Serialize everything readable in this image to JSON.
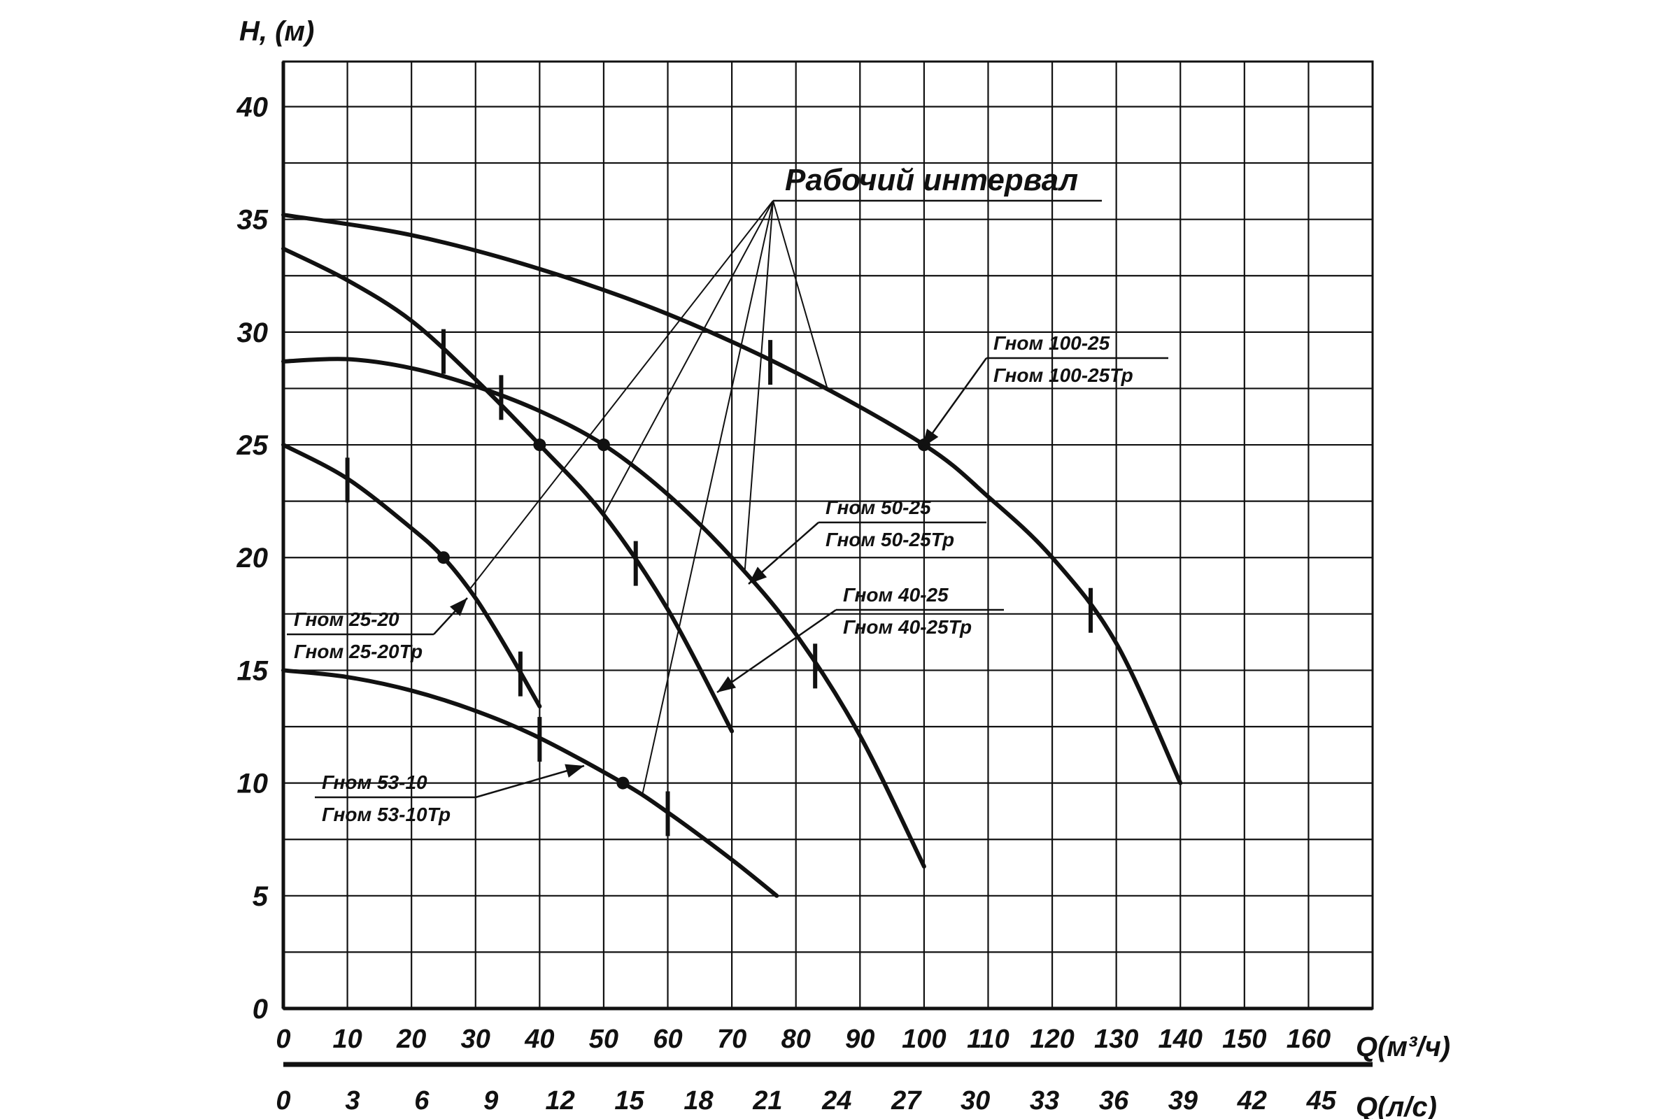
{
  "chart_data": {
    "type": "line",
    "ylabel": "H, (м)",
    "xlabel": "Q(м³/ч)",
    "xlabel2": "Q(л/с)",
    "ylim": [
      0,
      42
    ],
    "xlim": [
      0,
      170
    ],
    "yticks": [
      "0",
      "5",
      "10",
      "15",
      "20",
      "25",
      "30",
      "35",
      "40"
    ],
    "xticks": [
      "0",
      "10",
      "20",
      "30",
      "40",
      "50",
      "60",
      "70",
      "80",
      "90",
      "100",
      "110",
      "120",
      "130",
      "140",
      "150",
      "160"
    ],
    "xticks2": [
      "0",
      "3",
      "6",
      "9",
      "12",
      "15",
      "18",
      "21",
      "24",
      "27",
      "30",
      "33",
      "36",
      "39",
      "42",
      "45"
    ],
    "grid": true,
    "annotation": "Рабочий интервал",
    "series": [
      {
        "name": "Гном 100-25 / Гном 100-25Тр",
        "label_top": "Гном 100-25",
        "label_bottom": "Гном 100-25Тр",
        "x": [
          0,
          20,
          40,
          60,
          80,
          100,
          110,
          120,
          130,
          140
        ],
        "y": [
          35.2,
          34.3,
          32.8,
          30.8,
          28.2,
          25,
          22.7,
          20,
          16.2,
          10
        ],
        "rated_point": [
          100,
          25
        ],
        "interval": [
          76,
          126
        ]
      },
      {
        "name": "Гном 50-25 / Гном 50-25Тр",
        "label_top": "Гном 50-25",
        "label_bottom": "Гном 50-25Тр",
        "x": [
          0,
          10,
          20,
          30,
          40,
          50,
          60,
          70,
          80,
          90,
          100
        ],
        "y": [
          28.7,
          28.8,
          28.4,
          27.6,
          26.5,
          25,
          22.8,
          20,
          16.6,
          12.1,
          6.3
        ],
        "rated_point": [
          50,
          25
        ],
        "interval": [
          34,
          83
        ]
      },
      {
        "name": "Гном 40-25 / Гном 40-25Тр",
        "label_top": "Гном 40-25",
        "label_bottom": "Гном 40-25Тр",
        "x": [
          0,
          10,
          20,
          30,
          40,
          50,
          60,
          70
        ],
        "y": [
          33.7,
          32.3,
          30.5,
          27.9,
          25,
          21.9,
          17.7,
          12.3
        ],
        "rated_point": [
          40,
          25
        ],
        "interval": [
          25,
          55
        ]
      },
      {
        "name": "Гном 25-20 / Гном 25-20Тр",
        "label_top": "Гном 25-20",
        "label_bottom": "Гном 25-20Тр",
        "x": [
          0,
          10,
          20,
          25,
          30,
          35,
          40
        ],
        "y": [
          25,
          23.5,
          21.3,
          20,
          18.2,
          15.9,
          13.4
        ],
        "rated_point": [
          25,
          20
        ],
        "interval": [
          10,
          37
        ]
      },
      {
        "name": "Гном 53-10 / Гном 53-10Тр",
        "label_top": "Гном 53-10",
        "label_bottom": "Гном 53-10Тр",
        "x": [
          0,
          10,
          20,
          30,
          40,
          53,
          60,
          70,
          77
        ],
        "y": [
          15,
          14.7,
          14.1,
          13.2,
          12,
          10,
          8.7,
          6.6,
          5
        ],
        "rated_point": [
          53,
          10
        ],
        "interval": [
          40,
          60
        ]
      }
    ]
  }
}
